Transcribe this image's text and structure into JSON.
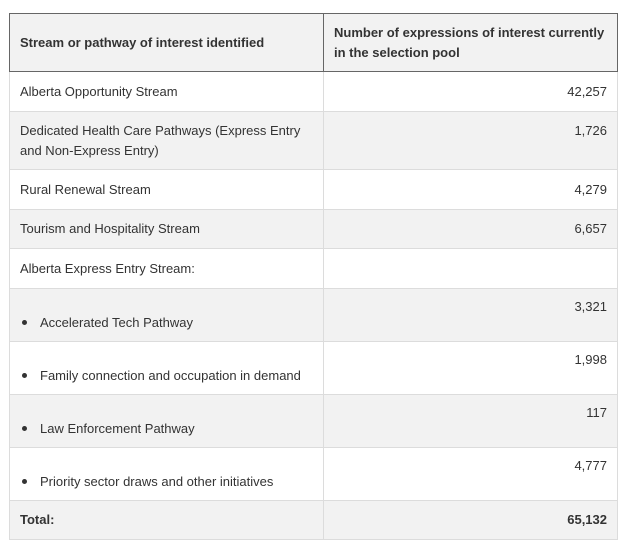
{
  "table": {
    "headers": [
      "Stream or pathway of interest identified",
      "Number of expressions of interest currently in the selection pool"
    ],
    "rows": [
      {
        "label": "Alberta Opportunity Stream",
        "value": "42,257"
      },
      {
        "label": "Dedicated Health Care Pathways (Express Entry and Non-Express Entry)",
        "value": "1,726"
      },
      {
        "label": "Rural Renewal Stream",
        "value": "4,279"
      },
      {
        "label": "Tourism and Hospitality Stream",
        "value": "6,657"
      },
      {
        "label": "Alberta Express Entry Stream:",
        "value": ""
      },
      {
        "label": "Accelerated Tech Pathway",
        "value": "3,321"
      },
      {
        "label": "Family connection and occupation in demand",
        "value": "1,998"
      },
      {
        "label": "Law Enforcement Pathway",
        "value": "117"
      },
      {
        "label": "Priority sector draws and other initiatives",
        "value": "4,777"
      }
    ],
    "total": {
      "label": "Total:",
      "value": "65,132"
    }
  }
}
